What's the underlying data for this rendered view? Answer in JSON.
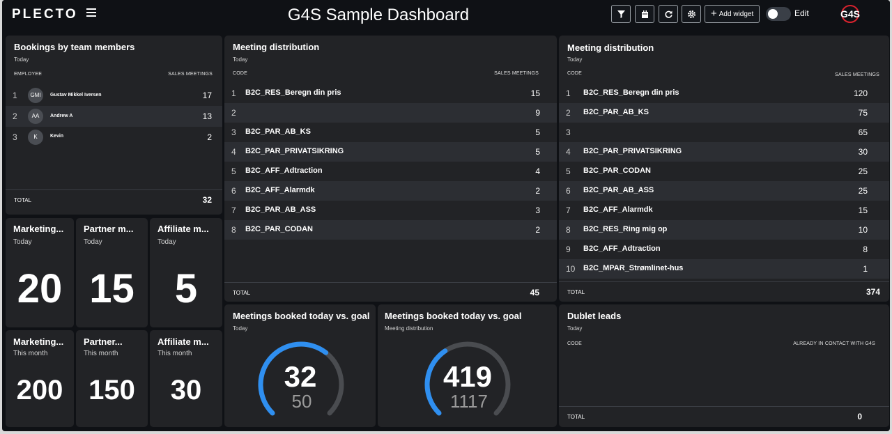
{
  "app": {
    "logo": "PLECTO",
    "title": "G4S Sample Dashboard",
    "brand": "G4S"
  },
  "toolbar": {
    "filter_icon": "filter-icon",
    "calendar_icon": "calendar-icon",
    "refresh_icon": "refresh-icon",
    "settings_icon": "gear-icon",
    "add_widget_label": "Add widget",
    "edit_label": "Edit"
  },
  "bookings": {
    "title": "Bookings by team members",
    "subtitle": "Today",
    "col_left": "EMPLOYEE",
    "col_right": "SALES MEETINGS",
    "rows": [
      {
        "rank": "1",
        "initials": "GMI",
        "name": "Gustav Mikkel Iversen",
        "value": "17"
      },
      {
        "rank": "2",
        "initials": "AA",
        "name": "Andrew A",
        "value": "13"
      },
      {
        "rank": "3",
        "initials": "K",
        "name": "Kevin",
        "value": "2"
      }
    ],
    "total_label": "TOTAL",
    "total_value": "32"
  },
  "dist_left": {
    "title": "Meeting distribution",
    "subtitle": "Today",
    "col_left": "CODE",
    "col_right": "SALES MEETINGS",
    "rows": [
      {
        "rank": "1",
        "name": "B2C_RES_Beregn din pris",
        "value": "15"
      },
      {
        "rank": "2",
        "name": "",
        "value": "9"
      },
      {
        "rank": "3",
        "name": "B2C_PAR_AB_KS",
        "value": "5"
      },
      {
        "rank": "4",
        "name": "B2C_PAR_PRIVATSIKRING",
        "value": "5"
      },
      {
        "rank": "5",
        "name": "B2C_AFF_Adtraction",
        "value": "4"
      },
      {
        "rank": "6",
        "name": "B2C_AFF_Alarmdk",
        "value": "2"
      },
      {
        "rank": "7",
        "name": "B2C_PAR_AB_ASS",
        "value": "3"
      },
      {
        "rank": "8",
        "name": "B2C_PAR_CODAN",
        "value": "2"
      }
    ],
    "total_label": "TOTAL",
    "total_value": "45"
  },
  "dist_right": {
    "title": "Meeting distribution",
    "subtitle": "Today",
    "col_left": "CODE",
    "col_right": "SALES MEETINGS",
    "rows": [
      {
        "rank": "1",
        "name": "B2C_RES_Beregn din pris",
        "value": "120"
      },
      {
        "rank": "2",
        "name": "B2C_PAR_AB_KS",
        "value": "75"
      },
      {
        "rank": "3",
        "name": "",
        "value": "65"
      },
      {
        "rank": "4",
        "name": "B2C_PAR_PRIVATSIKRING",
        "value": "30"
      },
      {
        "rank": "5",
        "name": "B2C_PAR_CODAN",
        "value": "25"
      },
      {
        "rank": "6",
        "name": "B2C_PAR_AB_ASS",
        "value": "25"
      },
      {
        "rank": "7",
        "name": "B2C_AFF_Alarmdk",
        "value": "15"
      },
      {
        "rank": "8",
        "name": "B2C_RES_Ring mig op",
        "value": "10"
      },
      {
        "rank": "9",
        "name": "B2C_AFF_Adtraction",
        "value": "8"
      },
      {
        "rank": "10",
        "name": "B2C_MPAR_Strømlinet-hus",
        "value": "1"
      }
    ],
    "total_label": "TOTAL",
    "total_value": "374"
  },
  "kpis_today": [
    {
      "title": "Marketing...",
      "subtitle": "Today",
      "value": "20"
    },
    {
      "title": "Partner m...",
      "subtitle": "Today",
      "value": "15"
    },
    {
      "title": "Affiliate m...",
      "subtitle": "Today",
      "value": "5"
    }
  ],
  "kpis_month": [
    {
      "title": "Marketing...",
      "subtitle": "This month",
      "value": "200"
    },
    {
      "title": "Partner...",
      "subtitle": "This month",
      "value": "150"
    },
    {
      "title": "Affiliate m...",
      "subtitle": "This month",
      "value": "30"
    }
  ],
  "gauges": [
    {
      "title": "Meetings booked today vs. goal",
      "subtitle": "Today",
      "value": "32",
      "goal": "50",
      "progress": 0.64
    },
    {
      "title": "Meetings booked today vs. goal",
      "subtitle": "Meeting distribution",
      "value": "419",
      "goal": "1117",
      "progress": 0.375
    }
  ],
  "dublet": {
    "title": "Dublet leads",
    "subtitle": "Today",
    "col_left": "CODE",
    "col_right": "ALREADY IN CONTACT WITH G4S",
    "total_label": "TOTAL",
    "total_value": "0"
  },
  "colors": {
    "accent": "#2f8ff0",
    "gauge_track": "#4a4c50",
    "card": "#222326",
    "background": "#0f1115"
  }
}
